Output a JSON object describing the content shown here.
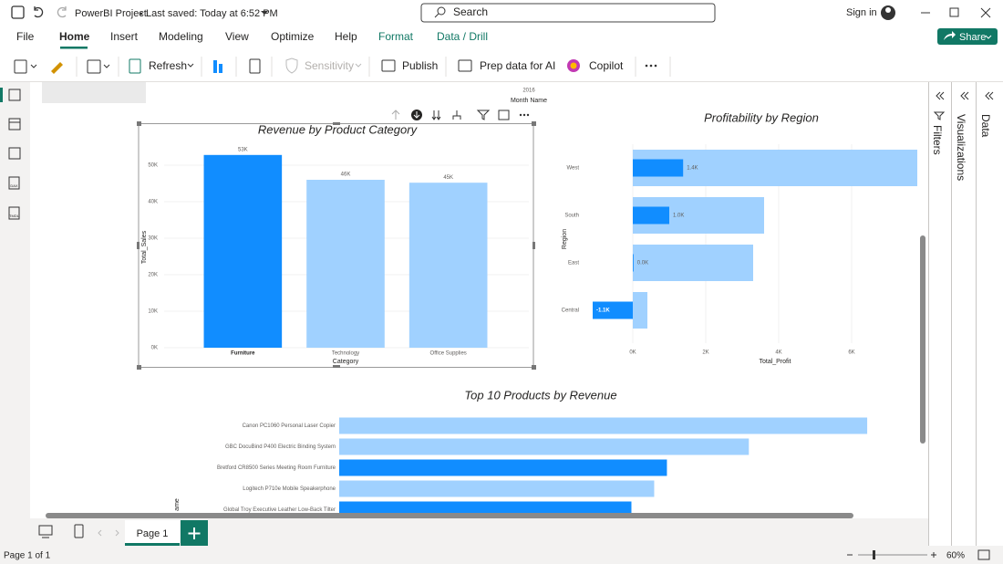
{
  "titlebar": {
    "title": "PowerBI Project",
    "saved": "Last saved: Today at 6:52 PM",
    "search": "Search",
    "signin": "Sign in"
  },
  "menu": {
    "items": [
      "File",
      "Home",
      "Insert",
      "Modeling",
      "View",
      "Optimize",
      "Help",
      "Format",
      "Data / Drill"
    ],
    "share": "Share"
  },
  "toolbar": [
    "Refresh",
    "Sensitivity",
    "Publish",
    "Prep data for AI",
    "Copilot"
  ],
  "sidebar": {
    "dax": "DAX",
    "tmdl": "TMDL"
  },
  "canvas_remnant": {
    "year": "2016",
    "axis": "Month Name"
  },
  "panes": [
    "Filters",
    "Visualizations",
    "Data"
  ],
  "pages": {
    "tab": "Page 1"
  },
  "status": {
    "page": "Page 1 of 1",
    "zoom": "60%"
  },
  "chart_data": [
    {
      "type": "bar",
      "title": "Revenue by Product Category",
      "categories": [
        "Furniture",
        "Technology",
        "Office Supplies"
      ],
      "values": [
        52800,
        46000,
        45200
      ],
      "value_labels": [
        "53K",
        "46K",
        "45K"
      ],
      "colors": [
        "#118dff",
        "#a0d1ff",
        "#a0d1ff"
      ],
      "xlabel": "Category",
      "ylabel": "Total_Sales",
      "ylim": [
        0,
        55000
      ],
      "yticks": [
        {
          "value": 0,
          "label": "0K"
        },
        {
          "value": 10000,
          "label": "10K"
        },
        {
          "value": 20000,
          "label": "20K"
        },
        {
          "value": 30000,
          "label": "30K"
        },
        {
          "value": 40000,
          "label": "40K"
        },
        {
          "value": 50000,
          "label": "50K"
        }
      ],
      "grid": true
    },
    {
      "type": "hbar",
      "title": "Profitability by Region",
      "categories": [
        "West",
        "South",
        "East",
        "Central"
      ],
      "series": [
        {
          "color": "#a0d1ff",
          "values": [
            7800,
            3600,
            3300,
            400
          ]
        },
        {
          "color": "#118dff",
          "values": [
            1380,
            1000,
            20,
            -1100
          ],
          "value_labels": [
            "1.4K",
            "1.0K",
            "0.0K",
            "-1.1K"
          ]
        }
      ],
      "xlabel": "Total_Profit",
      "ylabel": "Region",
      "xlim": [
        -1350,
        7850
      ],
      "xticks": [
        {
          "value": 0,
          "label": "0K"
        },
        {
          "value": 2000,
          "label": "2K"
        },
        {
          "value": 4000,
          "label": "4K"
        },
        {
          "value": 6000,
          "label": "6K"
        }
      ],
      "grid": true
    },
    {
      "type": "hbar",
      "title": "Top 10 Products by Revenue",
      "categories": [
        "Canon PC1060 Personal Laser Copier",
        "GBC DocuBind P400 Electric Binding System",
        "Bretford CR8500 Series Meeting Room Furniture",
        "Logitech P710e Mobile Speakerphone",
        "Global Troy Executive Leather Low-Back Tilter"
      ],
      "values": [
        5800,
        4500,
        3600,
        3460,
        3210
      ],
      "colors": [
        "#a0d1ff",
        "#a0d1ff",
        "#118dff",
        "#a0d1ff",
        "#118dff"
      ],
      "ylabel": "ame",
      "xlim": [
        0,
        6200
      ]
    }
  ]
}
